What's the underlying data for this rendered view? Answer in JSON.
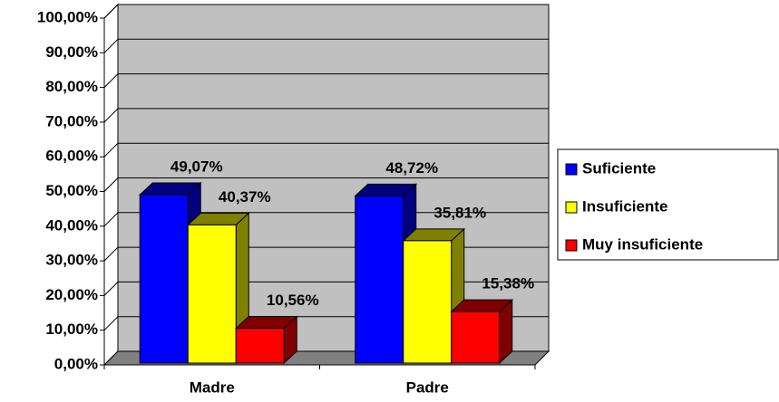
{
  "chart_data": {
    "type": "bar3d",
    "categories": [
      "Madre",
      "Padre"
    ],
    "series": [
      {
        "name": "Suficiente",
        "color": "#0000ff",
        "values": [
          49.07,
          48.72
        ],
        "value_labels": [
          "49,07%",
          "48,72%"
        ]
      },
      {
        "name": "Insuficiente",
        "color": "#ffff00",
        "values": [
          40.37,
          35.81
        ],
        "value_labels": [
          "40,37%",
          "35,81%"
        ]
      },
      {
        "name": "Muy insuficiente",
        "color": "#ff0000",
        "values": [
          10.56,
          15.38
        ],
        "value_labels": [
          "10,56%",
          "15,38%"
        ]
      }
    ],
    "ylim": [
      0,
      100
    ],
    "yticks": [
      {
        "value": 0,
        "label": "0,00%"
      },
      {
        "value": 10,
        "label": "10,00%"
      },
      {
        "value": 20,
        "label": "20,00%"
      },
      {
        "value": 30,
        "label": "30,00%"
      },
      {
        "value": 40,
        "label": "40,00%"
      },
      {
        "value": 50,
        "label": "50,00%"
      },
      {
        "value": 60,
        "label": "60,00%"
      },
      {
        "value": 70,
        "label": "70,00%"
      },
      {
        "value": 80,
        "label": "80,00%"
      },
      {
        "value": 90,
        "label": "90,00%"
      },
      {
        "value": 100,
        "label": "100,00%"
      }
    ],
    "grid": true,
    "legend": "right"
  }
}
